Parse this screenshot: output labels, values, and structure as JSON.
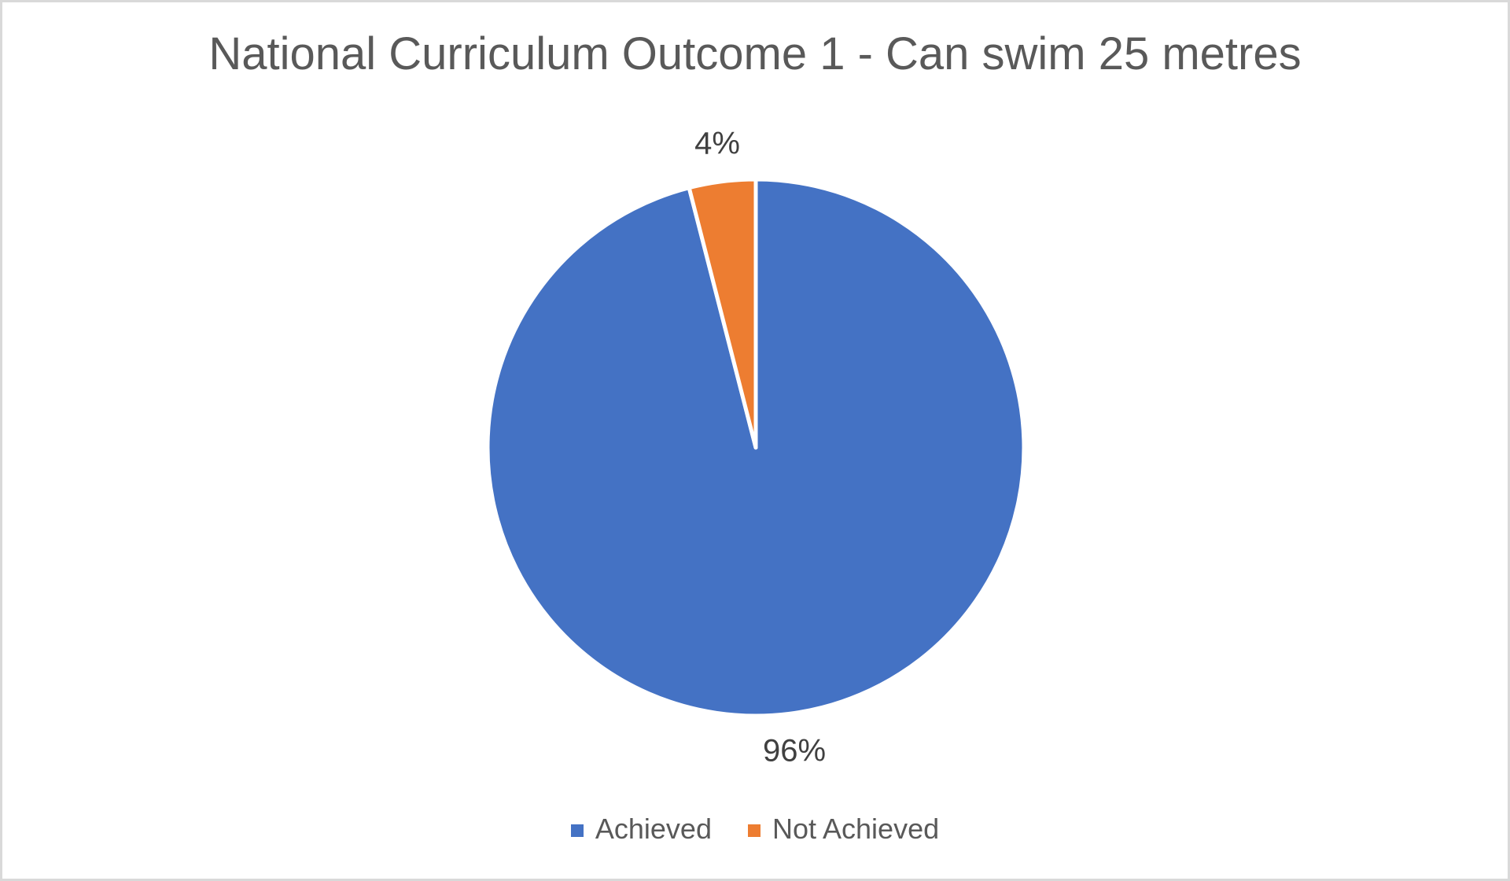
{
  "chart_data": {
    "type": "pie",
    "title": "National Curriculum Outcome 1 - Can swim 25 metres",
    "categories": [
      "Achieved",
      "Not Achieved"
    ],
    "values": [
      96,
      4
    ],
    "data_labels": [
      "96%",
      "4%"
    ],
    "colors": [
      "#4472C4",
      "#ED7D31"
    ],
    "slice_border_color": "#FFFFFF",
    "start_angle_deg": 0,
    "direction": "clockwise",
    "legend_position": "bottom",
    "legend_entries": [
      "Achieved",
      "Not Achieved"
    ],
    "title_color": "#595959",
    "label_color": "#404040",
    "legend_text_color": "#595959",
    "frame_border_color": "#D9D9D9",
    "background_color": "#FFFFFF"
  }
}
